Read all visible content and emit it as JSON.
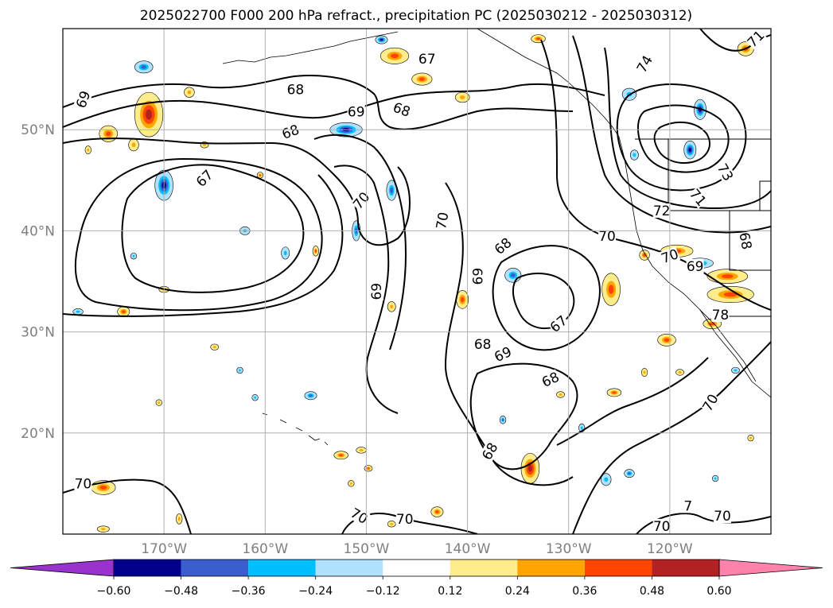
{
  "chart_data": {
    "type": "contour_map",
    "title": "2025022700 F000 200 hPa refract., precipitation PC (2025030212 - 2025030312)",
    "map_extent": {
      "lon_min": -180,
      "lon_max": -110,
      "lat_min": 10,
      "lat_max": 60
    },
    "grid": true,
    "lat_ticks": [
      {
        "value": 20,
        "label": "20°N"
      },
      {
        "value": 30,
        "label": "30°N"
      },
      {
        "value": 40,
        "label": "40°N"
      },
      {
        "value": 50,
        "label": "50°N"
      }
    ],
    "lon_ticks": [
      {
        "value": -170,
        "label": "170°W"
      },
      {
        "value": -160,
        "label": "160°W"
      },
      {
        "value": -150,
        "label": "150°W"
      },
      {
        "value": -140,
        "label": "140°W"
      },
      {
        "value": -130,
        "label": "130°W"
      },
      {
        "value": -120,
        "label": "120°W"
      }
    ],
    "contour_labels": [
      {
        "text": "69",
        "lon": -178.0,
        "lat": 53.0,
        "rot": -70
      },
      {
        "text": "68",
        "lon": -157.0,
        "lat": 54.0,
        "rot": 0
      },
      {
        "text": "67",
        "lon": -144.0,
        "lat": 57.0,
        "rot": 0
      },
      {
        "text": "69",
        "lon": -151.0,
        "lat": 51.8,
        "rot": 0
      },
      {
        "text": "68",
        "lon": -146.5,
        "lat": 52.0,
        "rot": 20
      },
      {
        "text": "68",
        "lon": -157.5,
        "lat": 49.8,
        "rot": -20
      },
      {
        "text": "67",
        "lon": -166.0,
        "lat": 45.2,
        "rot": -45
      },
      {
        "text": "70",
        "lon": -150.5,
        "lat": 43.0,
        "rot": -50
      },
      {
        "text": "70",
        "lon": -142.5,
        "lat": 41.0,
        "rot": -80
      },
      {
        "text": "69",
        "lon": -149.0,
        "lat": 34.0,
        "rot": -90
      },
      {
        "text": "69",
        "lon": -139.0,
        "lat": 35.5,
        "rot": -90
      },
      {
        "text": "68",
        "lon": -136.5,
        "lat": 38.5,
        "rot": -40
      },
      {
        "text": "67",
        "lon": -131.0,
        "lat": 30.8,
        "rot": -40
      },
      {
        "text": "68",
        "lon": -138.5,
        "lat": 28.8,
        "rot": 0
      },
      {
        "text": "69",
        "lon": -136.5,
        "lat": 27.8,
        "rot": -25
      },
      {
        "text": "68",
        "lon": -131.8,
        "lat": 25.3,
        "rot": -25
      },
      {
        "text": "68",
        "lon": -137.8,
        "lat": 18.2,
        "rot": -60
      },
      {
        "text": "72",
        "lon": -120.8,
        "lat": 42.0,
        "rot": 0
      },
      {
        "text": "70",
        "lon": -126.2,
        "lat": 39.5,
        "rot": 0
      },
      {
        "text": "70",
        "lon": -120.0,
        "lat": 37.5,
        "rot": -20
      },
      {
        "text": "69",
        "lon": -117.5,
        "lat": 36.5,
        "rot": 0
      },
      {
        "text": "73",
        "lon": -114.5,
        "lat": 45.8,
        "rot": 60
      },
      {
        "text": "71",
        "lon": -117.2,
        "lat": 43.3,
        "rot": 50
      },
      {
        "text": "74",
        "lon": -122.5,
        "lat": 56.5,
        "rot": -60
      },
      {
        "text": "71",
        "lon": -111.5,
        "lat": 59.0,
        "rot": -45
      },
      {
        "text": "68",
        "lon": -112.5,
        "lat": 39.0,
        "rot": 80
      },
      {
        "text": "78",
        "lon": -115.0,
        "lat": 31.7,
        "rot": 0
      },
      {
        "text": "70",
        "lon": -116.0,
        "lat": 23.0,
        "rot": -60
      },
      {
        "text": "70",
        "lon": -178.0,
        "lat": 15.0,
        "rot": 0
      },
      {
        "text": "70",
        "lon": -150.7,
        "lat": 11.8,
        "rot": 30
      },
      {
        "text": "70",
        "lon": -146.2,
        "lat": 11.5,
        "rot": 0
      },
      {
        "text": "70",
        "lon": -120.8,
        "lat": 10.8,
        "rot": 0
      },
      {
        "text": "70",
        "lon": -114.8,
        "lat": 11.8,
        "rot": 0
      },
      {
        "text": "7",
        "lon": -118.2,
        "lat": 12.8,
        "rot": 0
      }
    ],
    "colorbar": {
      "levels": [
        -0.6,
        -0.48,
        -0.36,
        -0.24,
        -0.12,
        0.12,
        0.24,
        0.36,
        0.48,
        0.6
      ],
      "tick_labels": [
        "−0.60",
        "−0.48",
        "−0.36",
        "−0.24",
        "−0.12",
        "0.12",
        "0.24",
        "0.36",
        "0.48",
        "0.60"
      ],
      "colors": [
        "#9a32cd",
        "#00008b",
        "#3a5fcd",
        "#00bfff",
        "#b0e2ff",
        "#ffffff",
        "#ffec8b",
        "#ffa500",
        "#ff4500",
        "#b22222",
        "#ff82ab"
      ],
      "extend": "both",
      "orientation": "horizontal"
    },
    "precip_patches": [
      {
        "lon": -171.5,
        "lat": 51.5,
        "rx": 1.4,
        "ry": 2.2,
        "v": 0.5
      },
      {
        "lon": -175.5,
        "lat": 49.6,
        "rx": 0.9,
        "ry": 0.8,
        "v": 0.4
      },
      {
        "lon": -167.5,
        "lat": 53.7,
        "rx": 0.5,
        "ry": 0.5,
        "v": 0.3
      },
      {
        "lon": -172.0,
        "lat": 56.2,
        "rx": 0.9,
        "ry": 0.6,
        "v": -0.4
      },
      {
        "lon": -173.0,
        "lat": 48.5,
        "rx": 0.5,
        "ry": 0.6,
        "v": 0.3
      },
      {
        "lon": -170.0,
        "lat": 44.5,
        "rx": 0.9,
        "ry": 1.5,
        "v": -0.5
      },
      {
        "lon": -152.0,
        "lat": 50.0,
        "rx": 1.6,
        "ry": 0.7,
        "v": -0.55
      },
      {
        "lon": -147.2,
        "lat": 57.3,
        "rx": 1.4,
        "ry": 0.8,
        "v": 0.45
      },
      {
        "lon": -144.5,
        "lat": 55.0,
        "rx": 1.0,
        "ry": 0.6,
        "v": 0.4
      },
      {
        "lon": -148.5,
        "lat": 58.9,
        "rx": 0.6,
        "ry": 0.4,
        "v": -0.5
      },
      {
        "lon": -133.0,
        "lat": 59.0,
        "rx": 0.7,
        "ry": 0.4,
        "v": 0.4
      },
      {
        "lon": -140.5,
        "lat": 53.2,
        "rx": 0.7,
        "ry": 0.5,
        "v": 0.3
      },
      {
        "lon": -147.5,
        "lat": 44.0,
        "rx": 0.5,
        "ry": 1.0,
        "v": -0.4
      },
      {
        "lon": -151.0,
        "lat": 40.0,
        "rx": 0.4,
        "ry": 1.0,
        "v": -0.4
      },
      {
        "lon": -158.0,
        "lat": 37.8,
        "rx": 0.4,
        "ry": 0.6,
        "v": -0.35
      },
      {
        "lon": -162.0,
        "lat": 40.0,
        "rx": 0.5,
        "ry": 0.4,
        "v": -0.3
      },
      {
        "lon": -135.5,
        "lat": 35.6,
        "rx": 0.8,
        "ry": 0.7,
        "v": -0.4
      },
      {
        "lon": -125.8,
        "lat": 34.2,
        "rx": 0.9,
        "ry": 1.6,
        "v": 0.45
      },
      {
        "lon": -122.5,
        "lat": 37.6,
        "rx": 0.5,
        "ry": 0.5,
        "v": 0.4
      },
      {
        "lon": -119.3,
        "lat": 38.0,
        "rx": 1.6,
        "ry": 0.6,
        "v": 0.4
      },
      {
        "lon": -114.3,
        "lat": 35.5,
        "rx": 2.0,
        "ry": 0.7,
        "v": 0.45
      },
      {
        "lon": -114.0,
        "lat": 33.7,
        "rx": 2.3,
        "ry": 0.8,
        "v": 0.4
      },
      {
        "lon": -117.0,
        "lat": 36.8,
        "rx": 1.3,
        "ry": 0.5,
        "v": -0.4
      },
      {
        "lon": -120.3,
        "lat": 29.2,
        "rx": 0.9,
        "ry": 0.6,
        "v": 0.45
      },
      {
        "lon": -115.8,
        "lat": 30.8,
        "rx": 0.9,
        "ry": 0.5,
        "v": 0.4
      },
      {
        "lon": -133.8,
        "lat": 16.5,
        "rx": 0.9,
        "ry": 1.5,
        "v": 0.5
      },
      {
        "lon": -176.0,
        "lat": 14.6,
        "rx": 1.2,
        "ry": 0.7,
        "v": 0.45
      },
      {
        "lon": -140.5,
        "lat": 33.2,
        "rx": 0.6,
        "ry": 0.9,
        "v": 0.4
      },
      {
        "lon": -147.5,
        "lat": 32.5,
        "rx": 0.4,
        "ry": 0.5,
        "v": 0.35
      },
      {
        "lon": -124.0,
        "lat": 53.5,
        "rx": 0.7,
        "ry": 0.6,
        "v": -0.35
      },
      {
        "lon": -117.0,
        "lat": 52.0,
        "rx": 0.6,
        "ry": 1.0,
        "v": -0.5
      },
      {
        "lon": -118.0,
        "lat": 48.0,
        "rx": 0.6,
        "ry": 0.9,
        "v": -0.55
      },
      {
        "lon": -123.5,
        "lat": 47.5,
        "rx": 0.4,
        "ry": 0.5,
        "v": -0.3
      },
      {
        "lon": -112.5,
        "lat": 58.0,
        "rx": 0.8,
        "ry": 0.7,
        "v": 0.45
      },
      {
        "lon": -152.5,
        "lat": 17.8,
        "rx": 0.7,
        "ry": 0.4,
        "v": 0.4
      },
      {
        "lon": -150.5,
        "lat": 18.3,
        "rx": 0.5,
        "ry": 0.3,
        "v": 0.35
      },
      {
        "lon": -149.8,
        "lat": 16.5,
        "rx": 0.4,
        "ry": 0.3,
        "v": 0.4
      },
      {
        "lon": -143.0,
        "lat": 12.2,
        "rx": 0.6,
        "ry": 0.5,
        "v": 0.4
      },
      {
        "lon": -151.5,
        "lat": 15.0,
        "rx": 0.3,
        "ry": 0.3,
        "v": 0.35
      },
      {
        "lon": -165.0,
        "lat": 28.5,
        "rx": 0.4,
        "ry": 0.3,
        "v": 0.3
      },
      {
        "lon": -174.0,
        "lat": 32.0,
        "rx": 0.6,
        "ry": 0.5,
        "v": 0.4
      },
      {
        "lon": -170.0,
        "lat": 34.2,
        "rx": 0.5,
        "ry": 0.3,
        "v": 0.35
      },
      {
        "lon": -155.5,
        "lat": 23.7,
        "rx": 0.6,
        "ry": 0.4,
        "v": -0.4
      },
      {
        "lon": -161.0,
        "lat": 23.5,
        "rx": 0.3,
        "ry": 0.3,
        "v": -0.3
      },
      {
        "lon": -162.5,
        "lat": 26.2,
        "rx": 0.3,
        "ry": 0.3,
        "v": -0.25
      },
      {
        "lon": -130.8,
        "lat": 23.8,
        "rx": 0.4,
        "ry": 0.3,
        "v": 0.35
      },
      {
        "lon": -125.5,
        "lat": 24.0,
        "rx": 0.7,
        "ry": 0.4,
        "v": 0.4
      },
      {
        "lon": -122.5,
        "lat": 26.0,
        "rx": 0.3,
        "ry": 0.4,
        "v": 0.35
      },
      {
        "lon": -136.5,
        "lat": 21.3,
        "rx": 0.3,
        "ry": 0.4,
        "v": -0.4
      },
      {
        "lon": -128.7,
        "lat": 20.5,
        "rx": 0.3,
        "ry": 0.4,
        "v": -0.35
      },
      {
        "lon": -124.0,
        "lat": 16.0,
        "rx": 0.5,
        "ry": 0.4,
        "v": -0.4
      },
      {
        "lon": -126.3,
        "lat": 15.4,
        "rx": 0.5,
        "ry": 0.6,
        "v": -0.35
      },
      {
        "lon": -112.0,
        "lat": 19.5,
        "rx": 0.3,
        "ry": 0.3,
        "v": 0.35
      },
      {
        "lon": -119.0,
        "lat": 26.0,
        "rx": 0.4,
        "ry": 0.3,
        "v": 0.35
      },
      {
        "lon": -113.5,
        "lat": 26.2,
        "rx": 0.4,
        "ry": 0.3,
        "v": -0.35
      },
      {
        "lon": -177.5,
        "lat": 48.0,
        "rx": 0.3,
        "ry": 0.4,
        "v": 0.35
      },
      {
        "lon": -170.5,
        "lat": 23.0,
        "rx": 0.3,
        "ry": 0.3,
        "v": 0.35
      },
      {
        "lon": -155.0,
        "lat": 38.0,
        "rx": 0.3,
        "ry": 0.5,
        "v": 0.4
      },
      {
        "lon": -173.0,
        "lat": 37.5,
        "rx": 0.3,
        "ry": 0.3,
        "v": -0.3
      },
      {
        "lon": -178.5,
        "lat": 32.0,
        "rx": 0.5,
        "ry": 0.3,
        "v": -0.3
      },
      {
        "lon": -160.5,
        "lat": 45.5,
        "rx": 0.3,
        "ry": 0.3,
        "v": 0.4
      },
      {
        "lon": -166.0,
        "lat": 48.5,
        "rx": 0.4,
        "ry": 0.3,
        "v": 0.35
      },
      {
        "lon": -168.5,
        "lat": 11.5,
        "rx": 0.3,
        "ry": 0.5,
        "v": 0.35
      },
      {
        "lon": -176.0,
        "lat": 10.5,
        "rx": 0.6,
        "ry": 0.3,
        "v": 0.35
      },
      {
        "lon": -115.5,
        "lat": 15.5,
        "rx": 0.3,
        "ry": 0.3,
        "v": -0.3
      },
      {
        "lon": -147.5,
        "lat": 11.0,
        "rx": 0.4,
        "ry": 0.3,
        "v": 0.35
      }
    ]
  }
}
